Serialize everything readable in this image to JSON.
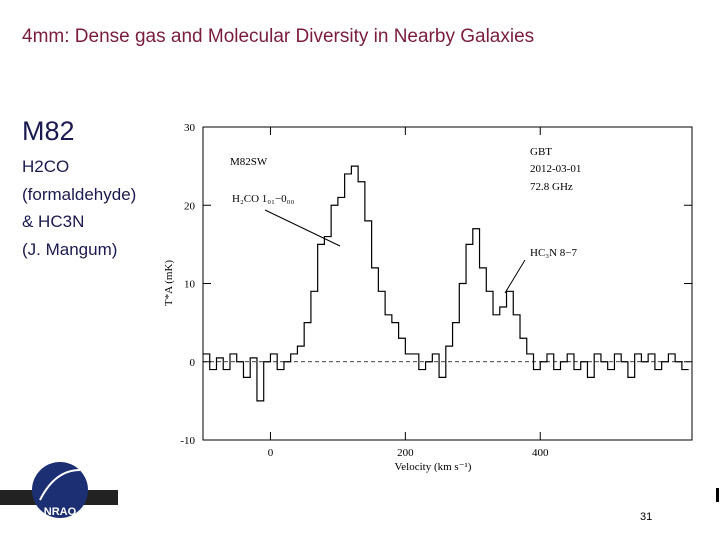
{
  "title": "4mm: Dense gas and Molecular Diversity in Nearby Galaxies",
  "heading": "M82",
  "notes": [
    "H2CO",
    "(formaldehyde)",
    "& HC3N",
    "(J. Mangum)"
  ],
  "page_number": "31",
  "chart_data": {
    "type": "line",
    "step": true,
    "x_label": "Velocity (km s⁻¹)",
    "y_label": "T*A (mK)",
    "annotations": [
      "M82SW",
      "H₂CO 1₀₁−0₀₀",
      "GBT",
      "2012-03-01",
      "72.8 GHz",
      "HC₃N 8−7"
    ],
    "x": [
      -95,
      -85,
      -75,
      -65,
      -55,
      -45,
      -35,
      -25,
      -15,
      -5,
      5,
      15,
      25,
      35,
      45,
      55,
      65,
      75,
      85,
      95,
      105,
      115,
      125,
      135,
      145,
      155,
      165,
      175,
      185,
      195,
      205,
      215,
      225,
      235,
      245,
      255,
      265,
      275,
      285,
      295,
      305,
      315,
      325,
      335,
      345,
      355,
      365,
      375,
      385,
      395,
      405,
      415,
      425,
      435,
      445,
      455,
      465,
      475,
      485,
      495,
      505,
      515,
      525,
      535,
      545,
      555,
      565,
      575,
      585,
      595,
      605,
      615
    ],
    "values": [
      1,
      -1,
      0.5,
      -1,
      1,
      0,
      -2,
      0.5,
      -5,
      0,
      1,
      -1,
      0,
      1,
      2,
      5,
      9,
      15,
      16,
      20,
      21,
      24,
      25,
      23,
      18,
      12,
      9,
      6,
      5,
      3,
      1,
      1,
      -1,
      0,
      1,
      -2,
      2,
      5,
      10,
      15,
      17,
      12,
      9,
      6,
      7,
      9,
      6,
      3,
      1,
      -1,
      0,
      1,
      -1,
      0,
      1,
      -1,
      0,
      -2,
      1,
      0,
      -1,
      1,
      0,
      -2,
      1,
      0,
      1,
      -1,
      0,
      1,
      0,
      -1
    ],
    "color": "#000000",
    "xlim": [
      -100,
      625
    ],
    "xticks": [
      0,
      200,
      400
    ],
    "ylim": [
      -10,
      30
    ],
    "yticks": [
      -10,
      0,
      10,
      20,
      30
    ]
  }
}
